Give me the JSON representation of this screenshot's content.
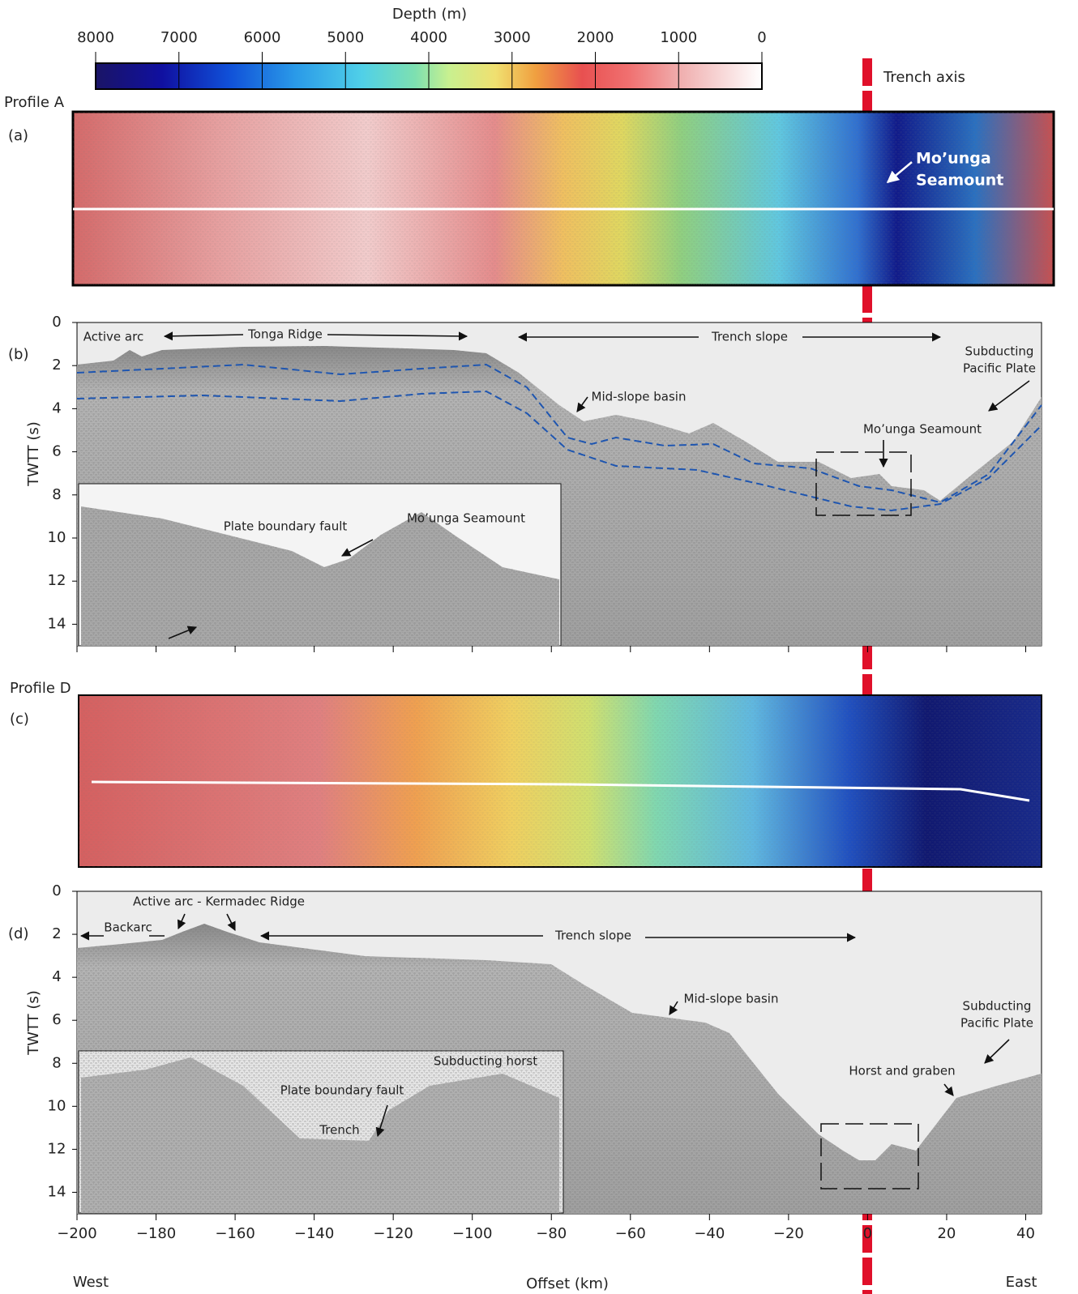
{
  "colorbar": {
    "title": "Depth (m)",
    "lim": [
      8000,
      0
    ],
    "ticks": [
      8000,
      7000,
      6000,
      5000,
      4000,
      3000,
      2000,
      1000,
      0
    ]
  },
  "trench_axis": "Trench axis",
  "panel_a": {
    "profile": "Profile A",
    "label": "(a)",
    "seamount": [
      "Mo’unga",
      "Seamount"
    ]
  },
  "panel_b": {
    "label": "(b)",
    "ylabel": "TWTT (s)",
    "ylim": [
      0,
      15
    ],
    "yticks": [
      0,
      2,
      4,
      6,
      8,
      10,
      12,
      14
    ],
    "annotations": [
      "Active arc",
      "Tonga Ridge",
      "Trench slope",
      "Subducting",
      "Pacific Plate",
      "Mid-slope basin",
      "Mo’unga Seamount"
    ],
    "inset": [
      "Plate boundary fault",
      "Mo’unga Seamount"
    ]
  },
  "panel_c": {
    "profile": "Profile D",
    "label": "(c)"
  },
  "panel_d": {
    "label": "(d)",
    "ylabel": "TWTT (s)",
    "ylim": [
      0,
      15
    ],
    "yticks": [
      0,
      2,
      4,
      6,
      8,
      10,
      12,
      14
    ],
    "annotations": [
      "Active arc - Kermadec Ridge",
      "Backarc",
      "Trench slope",
      "Mid-slope basin",
      "Subducting",
      "Pacific Plate",
      "Horst and graben"
    ],
    "inset": [
      "Subducting horst",
      "Plate boundary fault",
      "Trench"
    ]
  },
  "xaxis": {
    "label": "Offset (km)",
    "west": "West",
    "east": "East",
    "xlim": [
      -200,
      44
    ],
    "xticks": [
      {
        "value": -200,
        "label": "−200"
      },
      {
        "value": -180,
        "label": "−180"
      },
      {
        "value": -160,
        "label": "−160"
      },
      {
        "value": -140,
        "label": "−140"
      },
      {
        "value": -120,
        "label": "−120"
      },
      {
        "value": -100,
        "label": "−100"
      },
      {
        "value": -80,
        "label": "−80"
      },
      {
        "value": -60,
        "label": "−60"
      },
      {
        "value": -40,
        "label": "−40"
      },
      {
        "value": -20,
        "label": "−20"
      },
      0,
      20,
      40
    ]
  }
}
